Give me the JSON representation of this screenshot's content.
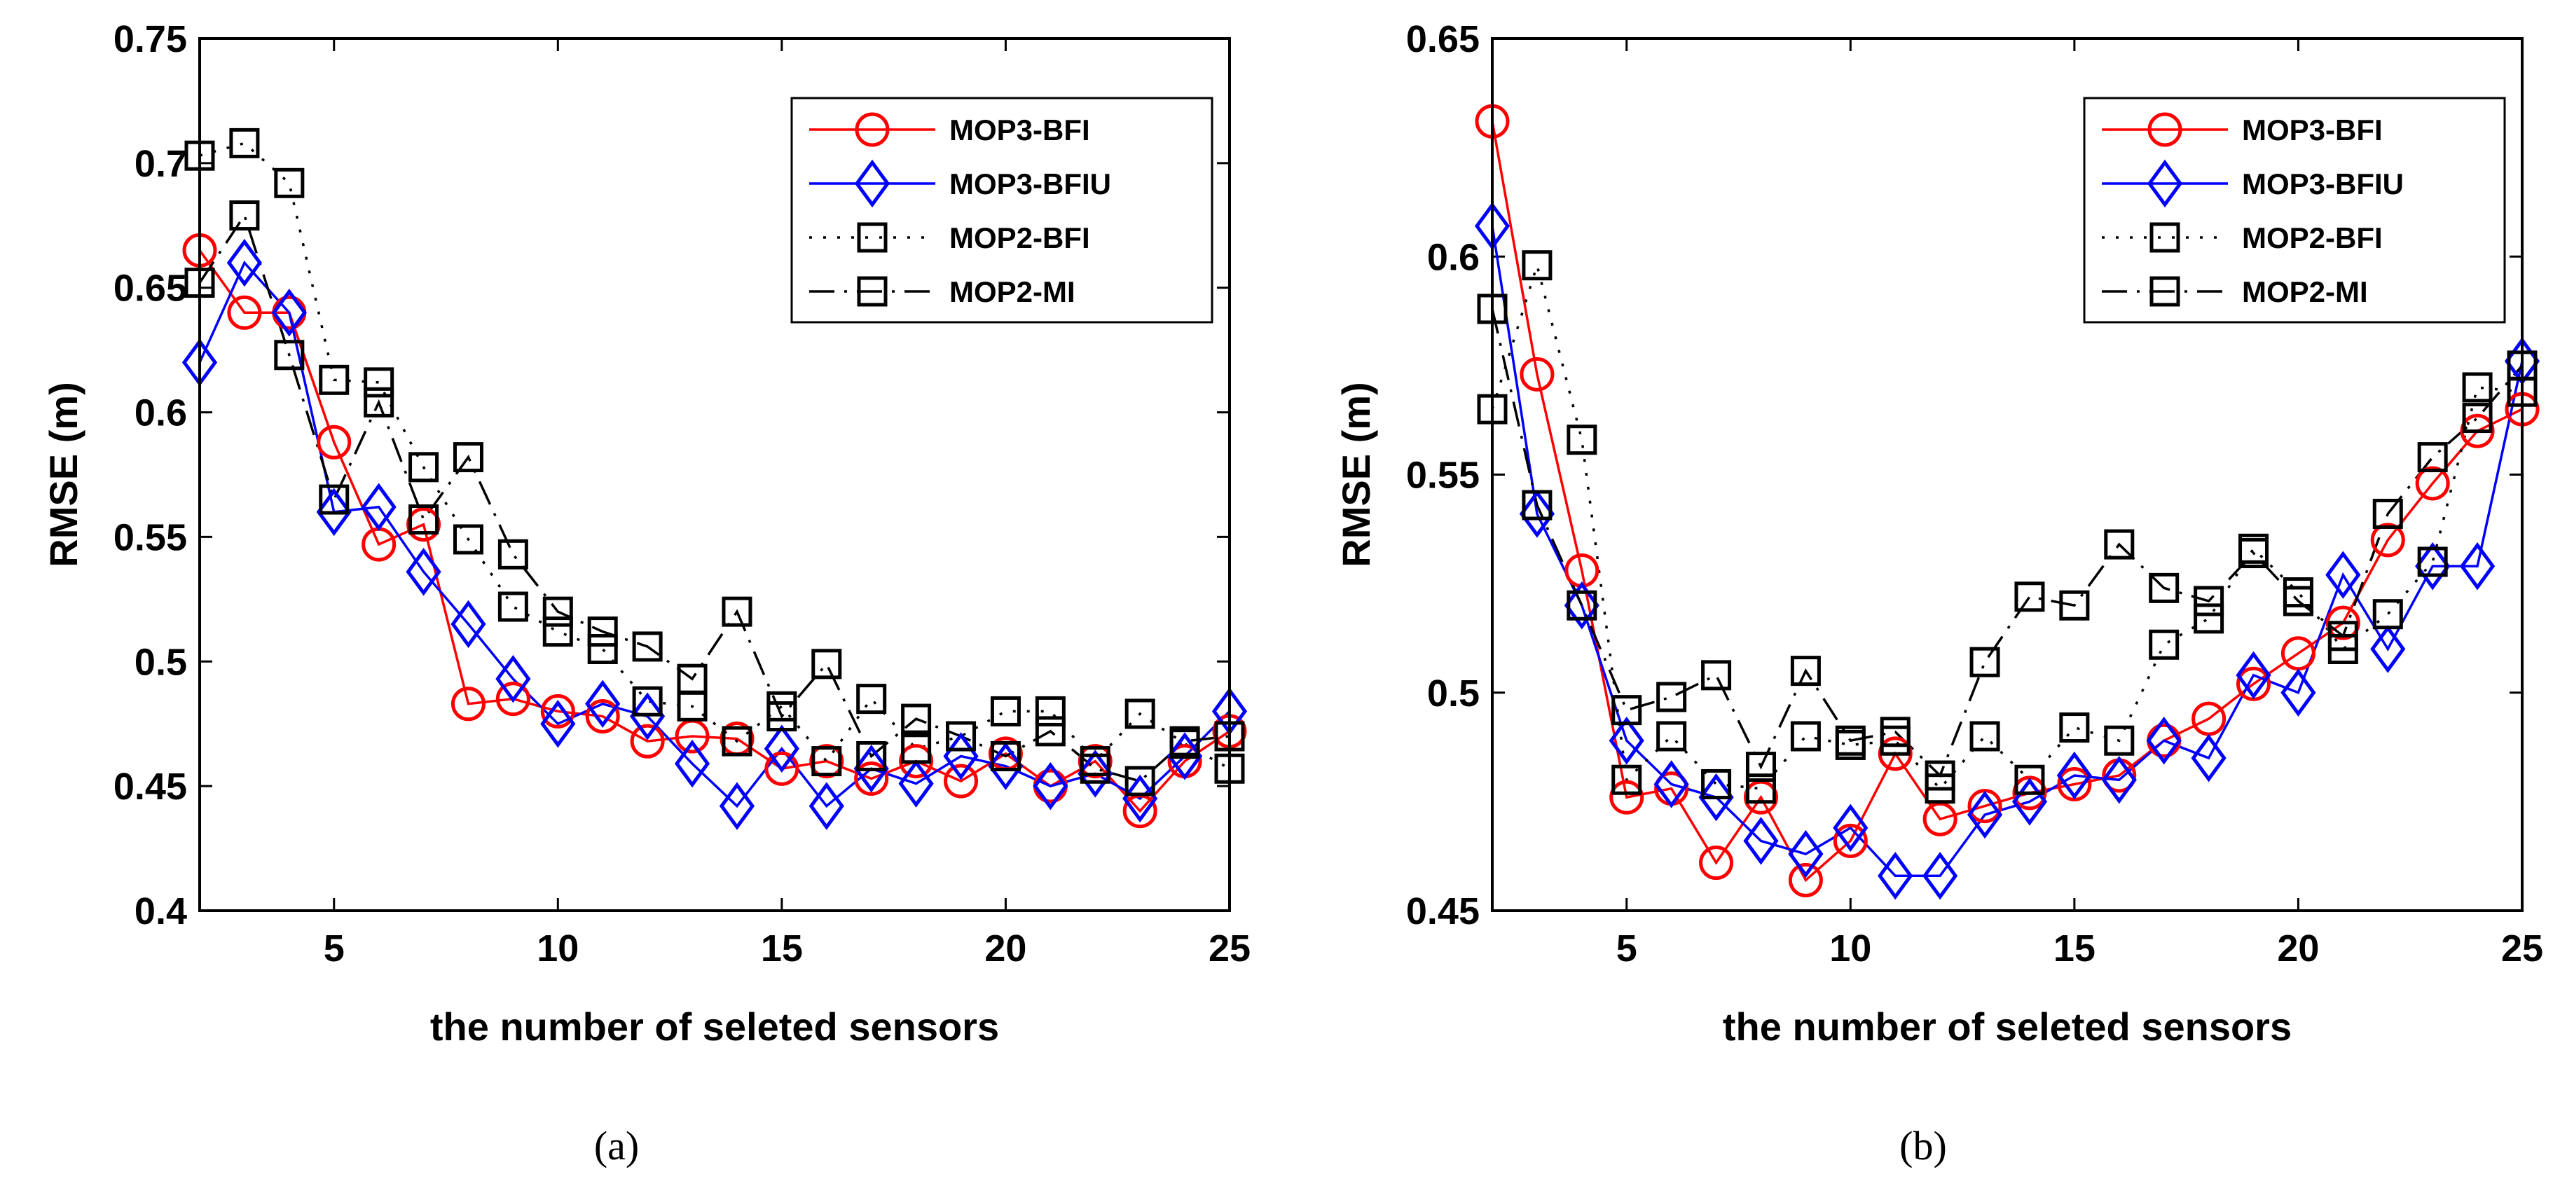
{
  "chart_data": [
    {
      "type": "line",
      "panel_label": "(a)",
      "xlabel": "the number of seleted sensors",
      "ylabel": "RMSE (m)",
      "xlim": [
        2,
        25
      ],
      "ylim": [
        0.4,
        0.75
      ],
      "xticks": [
        5,
        10,
        15,
        20,
        25
      ],
      "yticks": [
        0.4,
        0.45,
        0.5,
        0.55,
        0.6,
        0.65,
        0.7,
        0.75
      ],
      "ytick_labels": [
        "0.4",
        "0.45",
        "0.5",
        "0.55",
        "0.6",
        "0.65",
        "0.7",
        "0.75"
      ],
      "legend_position": "top-right",
      "x": [
        2,
        3,
        4,
        5,
        6,
        7,
        8,
        9,
        10,
        11,
        12,
        13,
        14,
        15,
        16,
        17,
        18,
        19,
        20,
        21,
        22,
        23,
        24,
        25
      ],
      "series": [
        {
          "name": "MOP3-BFI",
          "color": "#ff0000",
          "marker": "circle",
          "linestyle": "solid",
          "values": [
            0.665,
            0.64,
            0.64,
            0.588,
            0.547,
            0.555,
            0.483,
            0.485,
            0.48,
            0.478,
            0.468,
            0.47,
            0.469,
            0.457,
            0.46,
            0.453,
            0.46,
            0.452,
            0.463,
            0.45,
            0.46,
            0.44,
            0.46,
            0.472
          ]
        },
        {
          "name": "MOP3-BFIU",
          "color": "#0000ff",
          "marker": "diamond",
          "linestyle": "solid",
          "values": [
            0.62,
            0.66,
            0.64,
            0.56,
            0.562,
            0.536,
            0.515,
            0.493,
            0.475,
            0.483,
            0.478,
            0.459,
            0.442,
            0.465,
            0.442,
            0.457,
            0.451,
            0.462,
            0.458,
            0.45,
            0.455,
            0.445,
            0.462,
            0.48
          ]
        },
        {
          "name": "MOP2-BFI",
          "color": "#000000",
          "marker": "square",
          "linestyle": "dotted",
          "values": [
            0.703,
            0.708,
            0.692,
            0.613,
            0.612,
            0.578,
            0.549,
            0.522,
            0.512,
            0.505,
            0.484,
            0.482,
            0.468,
            0.482,
            0.46,
            0.485,
            0.465,
            0.47,
            0.48,
            0.48,
            0.46,
            0.479,
            0.467,
            0.457
          ]
        },
        {
          "name": "MOP2-MI",
          "color": "#000000",
          "marker": "square",
          "linestyle": "dashdot",
          "values": [
            0.652,
            0.679,
            0.623,
            0.565,
            0.604,
            0.557,
            0.582,
            0.543,
            0.52,
            0.512,
            0.506,
            0.493,
            0.52,
            0.478,
            0.499,
            0.462,
            0.477,
            0.47,
            0.462,
            0.472,
            0.457,
            0.452,
            0.468,
            0.47
          ]
        }
      ]
    },
    {
      "type": "line",
      "panel_label": "(b)",
      "xlabel": "the number of seleted sensors",
      "ylabel": "RMSE (m)",
      "xlim": [
        2,
        25
      ],
      "ylim": [
        0.45,
        0.65
      ],
      "xticks": [
        5,
        10,
        15,
        20,
        25
      ],
      "yticks": [
        0.45,
        0.5,
        0.55,
        0.6,
        0.65
      ],
      "ytick_labels": [
        "0.45",
        "0.5",
        "0.55",
        "0.6",
        "0.65"
      ],
      "legend_position": "top-right",
      "x": [
        2,
        3,
        4,
        5,
        6,
        7,
        8,
        9,
        10,
        11,
        12,
        13,
        14,
        15,
        16,
        17,
        18,
        19,
        20,
        21,
        22,
        23,
        24,
        25
      ],
      "series": [
        {
          "name": "MOP3-BFI",
          "color": "#ff0000",
          "marker": "circle",
          "linestyle": "solid",
          "values": [
            0.631,
            0.573,
            0.528,
            0.476,
            0.478,
            0.461,
            0.476,
            0.457,
            0.466,
            0.486,
            0.471,
            0.474,
            0.477,
            0.479,
            0.481,
            0.489,
            0.494,
            0.502,
            0.509,
            0.516,
            0.535,
            0.548,
            0.56,
            0.565
          ]
        },
        {
          "name": "MOP3-BFIU",
          "color": "#0000ff",
          "marker": "diamond",
          "linestyle": "solid",
          "values": [
            0.607,
            0.541,
            0.52,
            0.489,
            0.479,
            0.476,
            0.466,
            0.463,
            0.469,
            0.458,
            0.458,
            0.472,
            0.475,
            0.481,
            0.48,
            0.489,
            0.485,
            0.504,
            0.5,
            0.527,
            0.51,
            0.529,
            0.529,
            0.576
          ]
        },
        {
          "name": "MOP2-BFI",
          "color": "#000000",
          "marker": "square",
          "linestyle": "dotted",
          "values": [
            0.565,
            0.598,
            0.558,
            0.48,
            0.49,
            0.479,
            0.478,
            0.49,
            0.488,
            0.489,
            0.478,
            0.49,
            0.48,
            0.492,
            0.489,
            0.511,
            0.517,
            0.533,
            0.523,
            0.51,
            0.518,
            0.53,
            0.57,
            0.569
          ]
        },
        {
          "name": "MOP2-MI",
          "color": "#000000",
          "marker": "square",
          "linestyle": "dashdot",
          "values": [
            0.588,
            0.543,
            0.52,
            0.496,
            0.499,
            0.504,
            0.483,
            0.505,
            0.489,
            0.491,
            0.481,
            0.507,
            0.522,
            0.52,
            0.534,
            0.524,
            0.521,
            0.532,
            0.521,
            0.513,
            0.541,
            0.554,
            0.563,
            0.575
          ]
        }
      ]
    }
  ]
}
